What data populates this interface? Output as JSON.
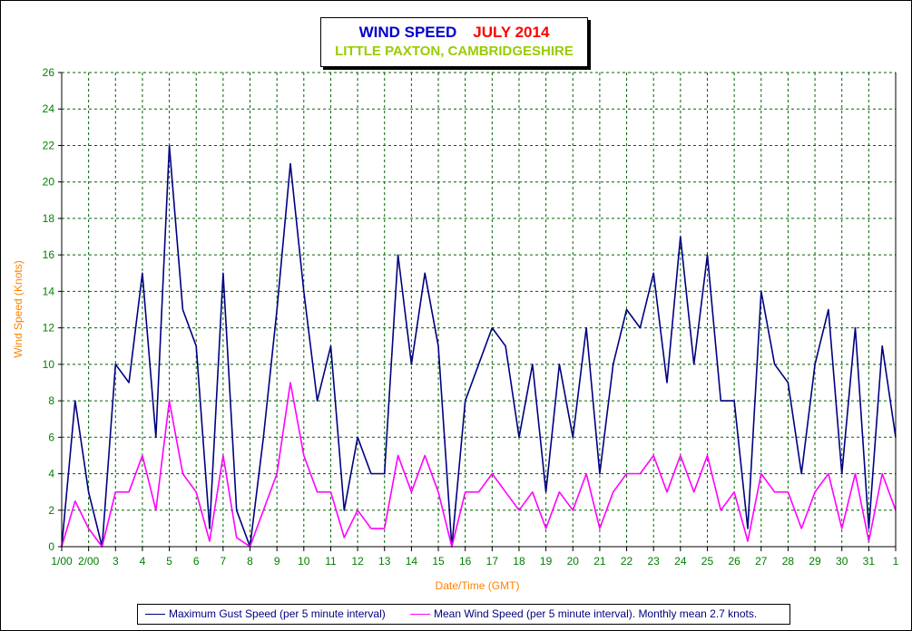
{
  "chart_data": {
    "type": "line",
    "title": "WIND SPEED",
    "title_month": "JULY 2014",
    "subtitle": "LITTLE PAXTON, CAMBRIDGESHIRE",
    "xlabel": "Date/Time (GMT)",
    "ylabel": "Wind Speed (Knots)",
    "ylim": [
      0,
      26
    ],
    "yticks": [
      0,
      2,
      4,
      6,
      8,
      10,
      12,
      14,
      16,
      18,
      20,
      22,
      24,
      26
    ],
    "xticks": [
      "1/00",
      "2/00",
      "3",
      "4",
      "5",
      "6",
      "7",
      "8",
      "9",
      "10",
      "11",
      "12",
      "13",
      "14",
      "15",
      "16",
      "17",
      "18",
      "19",
      "20",
      "21",
      "22",
      "23",
      "24",
      "25",
      "26",
      "27",
      "28",
      "29",
      "30",
      "31",
      "1"
    ],
    "grid": true,
    "colors": {
      "gust": "#000080",
      "mean": "#ff00ff",
      "axis_text": "#008000",
      "axis_title": "#ff8000",
      "grid": "#006400"
    },
    "series": [
      {
        "name": "Maximum Gust Speed (per 5 minute interval)",
        "x": [
          1.0,
          1.5,
          2.0,
          2.5,
          3.0,
          3.5,
          4.0,
          4.5,
          5.0,
          5.5,
          6.0,
          6.5,
          7.0,
          7.5,
          8.0,
          8.5,
          9.0,
          9.5,
          10.0,
          10.5,
          11.0,
          11.5,
          12.0,
          12.5,
          13.0,
          13.5,
          14.0,
          14.5,
          15.0,
          15.5,
          16.0,
          16.5,
          17.0,
          17.5,
          18.0,
          18.5,
          19.0,
          19.5,
          20.0,
          20.5,
          21.0,
          21.5,
          22.0,
          22.5,
          23.0,
          23.5,
          24.0,
          24.5,
          25.0,
          25.5,
          26.0,
          26.5,
          27.0,
          27.5,
          28.0,
          28.5,
          29.0,
          29.5,
          30.0,
          30.5,
          31.0,
          31.5,
          32.0
        ],
        "values": [
          0,
          8,
          3,
          0,
          10,
          9,
          15,
          6,
          22,
          13,
          11,
          1,
          15,
          2,
          0,
          6,
          13,
          21,
          14,
          8,
          11,
          2,
          6,
          4,
          4,
          16,
          10,
          15,
          11,
          0,
          8,
          10,
          12,
          11,
          6,
          10,
          3,
          10,
          6,
          12,
          4,
          10,
          13,
          12,
          15,
          9,
          17,
          10,
          16,
          8,
          8,
          1,
          14,
          10,
          9,
          4,
          10,
          13,
          4,
          12,
          1,
          11,
          6
        ]
      },
      {
        "name": "Mean Wind Speed (per 5 minute interval). Monthly mean 2.7 knots.",
        "x": [
          1.0,
          1.5,
          2.0,
          2.5,
          3.0,
          3.5,
          4.0,
          4.5,
          5.0,
          5.5,
          6.0,
          6.5,
          7.0,
          7.5,
          8.0,
          8.5,
          9.0,
          9.5,
          10.0,
          10.5,
          11.0,
          11.5,
          12.0,
          12.5,
          13.0,
          13.5,
          14.0,
          14.5,
          15.0,
          15.5,
          16.0,
          16.5,
          17.0,
          17.5,
          18.0,
          18.5,
          19.0,
          19.5,
          20.0,
          20.5,
          21.0,
          21.5,
          22.0,
          22.5,
          23.0,
          23.5,
          24.0,
          24.5,
          25.0,
          25.5,
          26.0,
          26.5,
          27.0,
          27.5,
          28.0,
          28.5,
          29.0,
          29.5,
          30.0,
          30.5,
          31.0,
          31.5,
          32.0
        ],
        "values": [
          0,
          2.5,
          1,
          0,
          3,
          3,
          5,
          2,
          8,
          4,
          3,
          0.3,
          5,
          0.5,
          0,
          2,
          4,
          9,
          5,
          3,
          3,
          0.5,
          2,
          1,
          1,
          5,
          3,
          5,
          3,
          0,
          3,
          3,
          4,
          3,
          2,
          3,
          1,
          3,
          2,
          4,
          1,
          3,
          4,
          4,
          5,
          3,
          5,
          3,
          5,
          2,
          3,
          0.3,
          4,
          3,
          3,
          1,
          3,
          4,
          1,
          4,
          0.3,
          4,
          2
        ]
      }
    ]
  }
}
